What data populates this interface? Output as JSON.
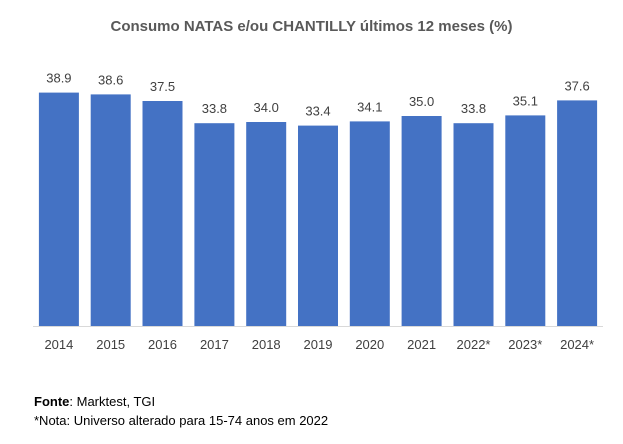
{
  "chart_data": {
    "type": "bar",
    "title": "Consumo NATAS e/ou CHANTILLY últimos 12 meses (%)",
    "categories": [
      "2014",
      "2015",
      "2016",
      "2017",
      "2018",
      "2019",
      "2020",
      "2021",
      "2022*",
      "2023*",
      "2024*"
    ],
    "values": [
      38.9,
      38.6,
      37.5,
      33.8,
      34.0,
      33.4,
      34.1,
      35.0,
      33.8,
      35.1,
      37.6
    ],
    "value_labels": [
      "38.9",
      "38.6",
      "37.5",
      "33.8",
      "34.0",
      "33.4",
      "34.1",
      "35.0",
      "33.8",
      "35.1",
      "37.6"
    ],
    "xlabel": "",
    "ylabel": "",
    "ylim": [
      0,
      40
    ],
    "bar_color": "#4472C4",
    "axis_color": "#D9D9D9",
    "grid": false
  },
  "footer": {
    "source_label": "Fonte",
    "source_text": ": Marktest, TGI",
    "note": "*Nota: Universo alterado para 15-74 anos em 2022"
  }
}
